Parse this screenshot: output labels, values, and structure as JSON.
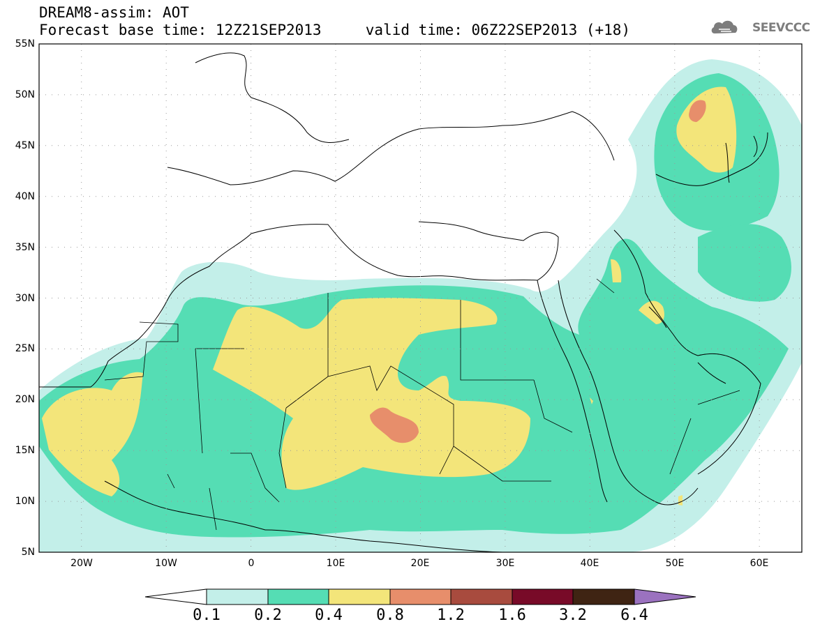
{
  "header": {
    "line1": "DREAM8-assim: AOT",
    "line2": "Forecast base time: 12Z21SEP2013     valid time: 06Z22SEP2013 (+18)"
  },
  "logo": {
    "text": "SEEVCCC",
    "icon": "cloud-icon",
    "color": "#7d7d7d"
  },
  "map": {
    "lat_range": [
      5,
      55
    ],
    "lon_range": [
      -25,
      65
    ],
    "grid": "dotted",
    "lat_labels": [
      "55N",
      "50N",
      "45N",
      "40N",
      "35N",
      "30N",
      "25N",
      "20N",
      "15N",
      "10N",
      "5N"
    ],
    "lon_labels": [
      "20W",
      "10W",
      "0",
      "10E",
      "20E",
      "30E",
      "40E",
      "50E",
      "60E"
    ]
  },
  "colorbar": {
    "labels": [
      "0.1",
      "0.2",
      "0.4",
      "0.8",
      "1.2",
      "1.6",
      "3.2",
      "6.4"
    ],
    "colors": [
      "#c3efe9",
      "#55ddb4",
      "#f3e57a",
      "#e78e6b",
      "#a84b3e",
      "#780a28",
      "#3f2413",
      "#9b72bf"
    ],
    "extend": "both"
  }
}
